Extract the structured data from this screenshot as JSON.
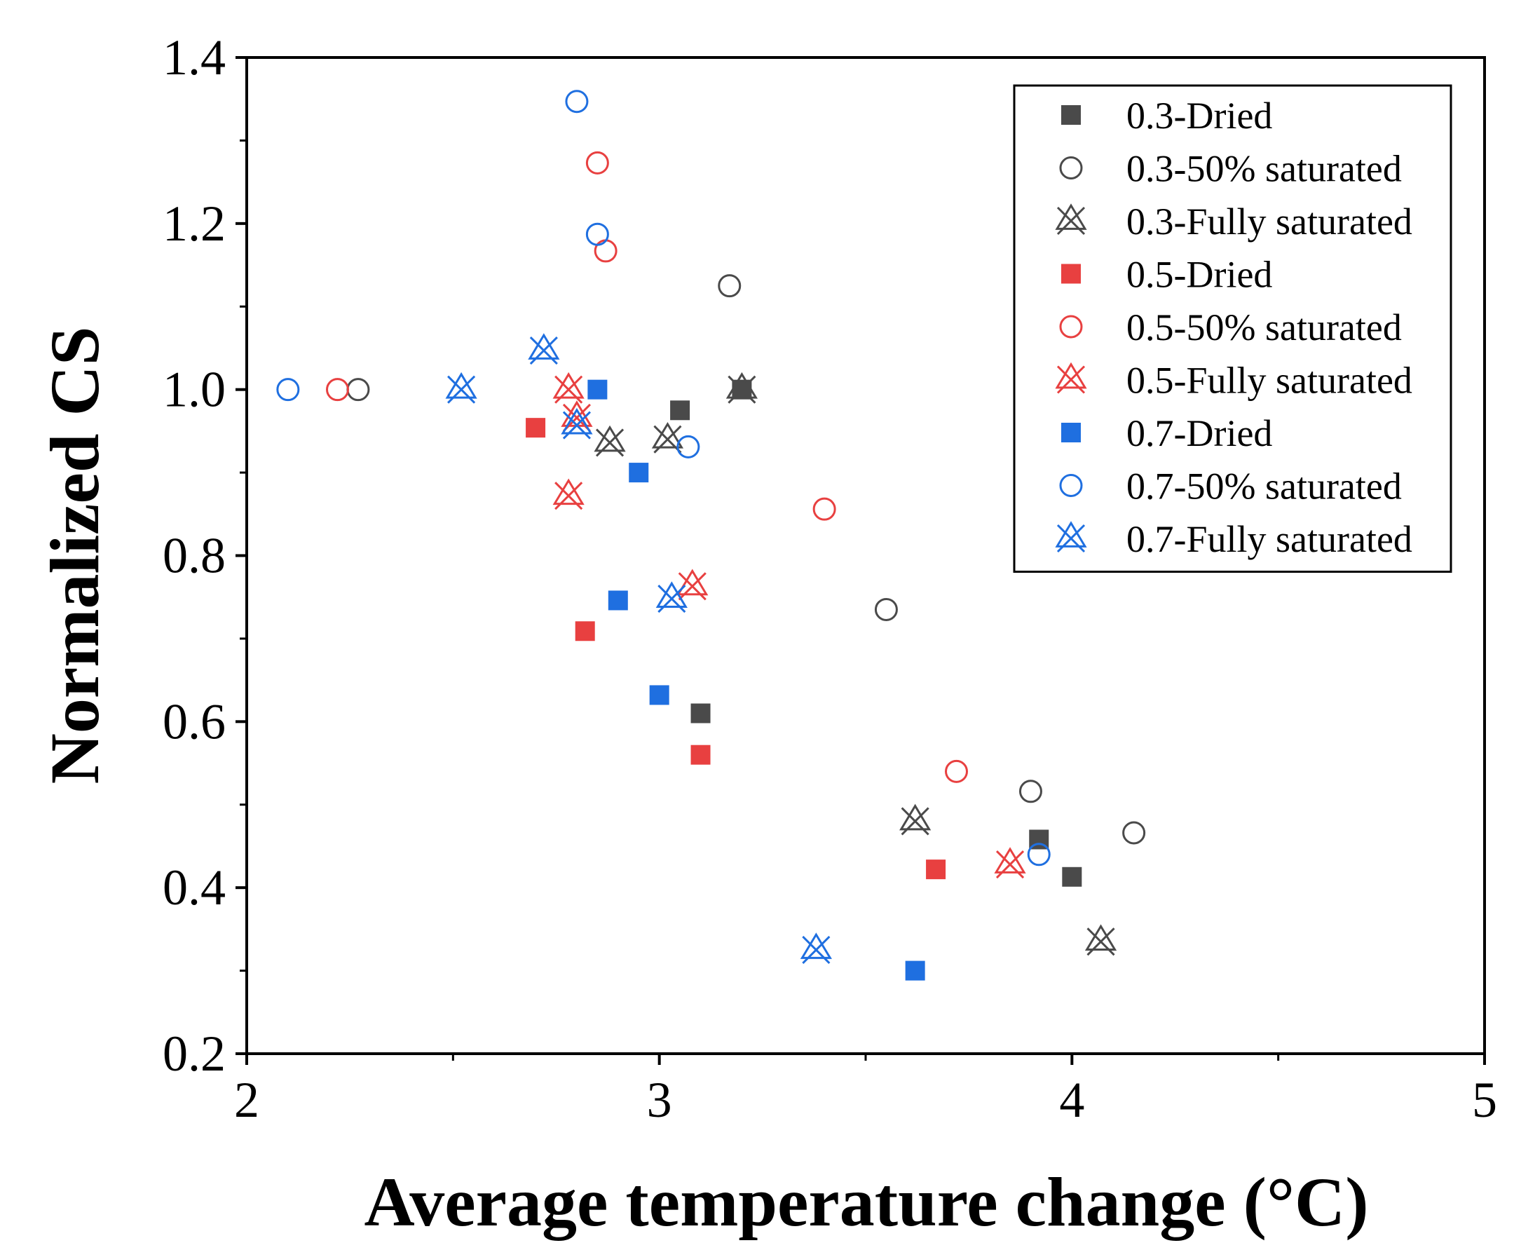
{
  "chart_data": {
    "type": "scatter",
    "title": "",
    "xlabel": "Average temperature change (°C)",
    "ylabel": "Normalized CS",
    "xlim": [
      2,
      5
    ],
    "ylim": [
      0.2,
      1.4
    ],
    "xticks": [
      2,
      3,
      4,
      5
    ],
    "xtick_labels": [
      "2",
      "3",
      "4",
      "5"
    ],
    "yticks": [
      0.2,
      0.4,
      0.6,
      0.8,
      1.0,
      1.2,
      1.4
    ],
    "ytick_labels": [
      "0.2",
      "0.4",
      "0.6",
      "0.8",
      "1.0",
      "1.2",
      "1.4"
    ],
    "grid": false,
    "legend_position": "top-right",
    "series": [
      {
        "name": "0.3-Dried",
        "marker": "square",
        "color": "#4a4a4a",
        "points": [
          [
            3.2,
            1.0
          ],
          [
            3.05,
            0.975
          ],
          [
            3.1,
            0.61
          ],
          [
            3.92,
            0.458
          ],
          [
            4.0,
            0.413
          ]
        ]
      },
      {
        "name": "0.3-50% saturated",
        "marker": "circle",
        "color": "#4a4a4a",
        "points": [
          [
            2.27,
            1.0
          ],
          [
            3.17,
            1.125
          ],
          [
            3.55,
            0.735
          ],
          [
            3.9,
            0.516
          ],
          [
            4.15,
            0.466
          ]
        ]
      },
      {
        "name": "0.3-Fully saturated",
        "marker": "star",
        "color": "#4a4a4a",
        "points": [
          [
            3.2,
            1.0
          ],
          [
            2.88,
            0.936
          ],
          [
            3.02,
            0.94
          ],
          [
            3.62,
            0.48
          ],
          [
            4.07,
            0.335
          ]
        ]
      },
      {
        "name": "0.5-Dried",
        "marker": "square",
        "color": "#e84040",
        "points": [
          [
            2.7,
            0.954
          ],
          [
            2.82,
            0.709
          ],
          [
            3.1,
            0.56
          ],
          [
            3.67,
            0.422
          ]
        ]
      },
      {
        "name": "0.5-50% saturated",
        "marker": "circle",
        "color": "#e84040",
        "points": [
          [
            2.22,
            1.0
          ],
          [
            2.85,
            1.273
          ],
          [
            2.87,
            1.167
          ],
          [
            3.4,
            0.856
          ],
          [
            3.72,
            0.54
          ]
        ]
      },
      {
        "name": "0.5-Fully saturated",
        "marker": "star",
        "color": "#e84040",
        "points": [
          [
            2.78,
            1.0
          ],
          [
            2.8,
            0.966
          ],
          [
            2.78,
            0.872
          ],
          [
            3.08,
            0.763
          ],
          [
            3.85,
            0.428
          ]
        ]
      },
      {
        "name": "0.7-Dried",
        "marker": "square",
        "color": "#1f6fe0",
        "points": [
          [
            2.85,
            1.0
          ],
          [
            2.95,
            0.9
          ],
          [
            2.9,
            0.746
          ],
          [
            3.0,
            0.632
          ],
          [
            3.62,
            0.3
          ]
        ]
      },
      {
        "name": "0.7-50% saturated",
        "marker": "circle",
        "color": "#1f6fe0",
        "points": [
          [
            2.1,
            1.0
          ],
          [
            2.8,
            1.347
          ],
          [
            2.85,
            1.187
          ],
          [
            3.07,
            0.931
          ],
          [
            3.92,
            0.44
          ]
        ]
      },
      {
        "name": "0.7-Fully saturated",
        "marker": "star",
        "color": "#1f6fe0",
        "points": [
          [
            2.52,
            1.0
          ],
          [
            2.72,
            1.047
          ],
          [
            2.8,
            0.957
          ],
          [
            3.03,
            0.748
          ],
          [
            3.38,
            0.325
          ]
        ]
      }
    ]
  }
}
